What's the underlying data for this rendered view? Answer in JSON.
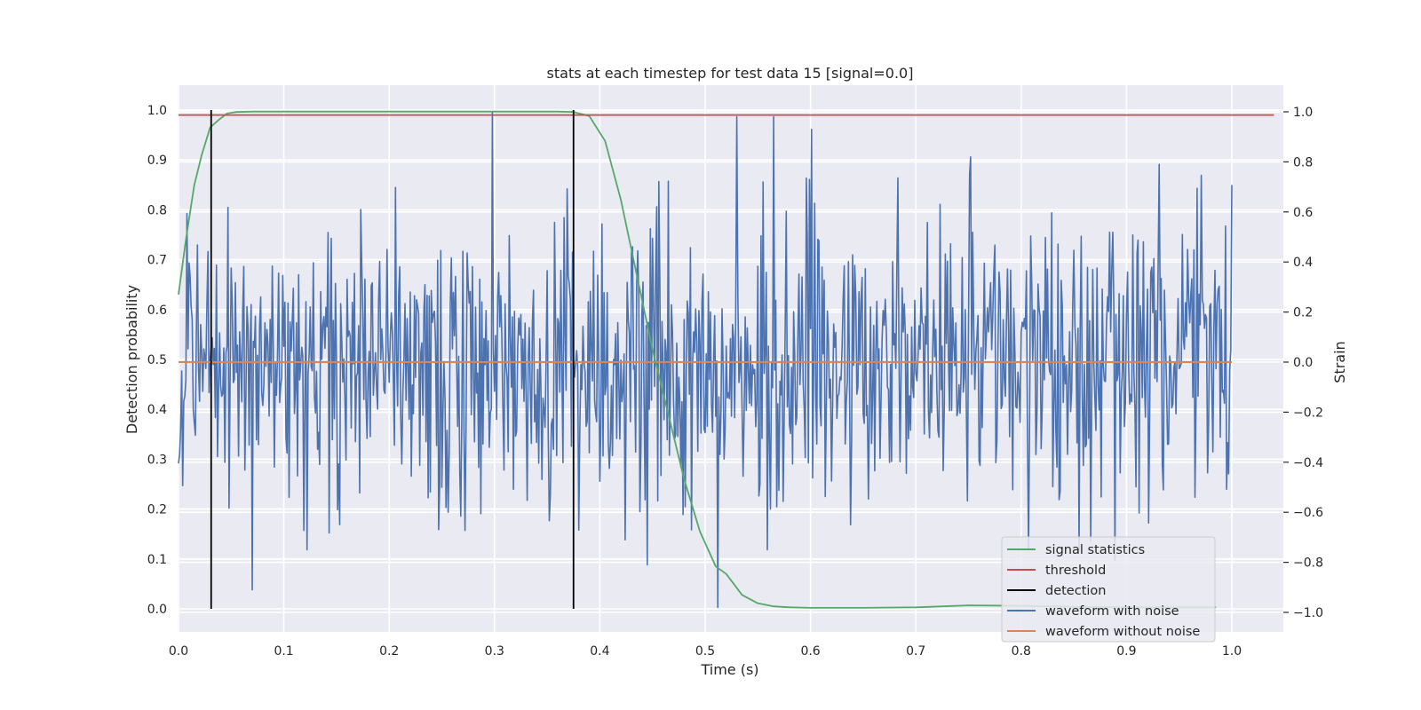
{
  "chart_data": {
    "type": "line",
    "title": "stats at each timestep for test data 15 [signal=0.0]",
    "xlabel": "Time (s)",
    "ylabel_left": "Detection probability",
    "ylabel_right": "Strain",
    "xlim": [
      0.0,
      1.05
    ],
    "ylim_left": [
      -0.048,
      1.048
    ],
    "ylim_right": [
      -1.1,
      1.1
    ],
    "xticks": [
      "0.0",
      "0.1",
      "0.2",
      "0.3",
      "0.4",
      "0.5",
      "0.6",
      "0.7",
      "0.8",
      "0.9",
      "1.0"
    ],
    "yticks_left": [
      "0.0",
      "0.1",
      "0.2",
      "0.3",
      "0.4",
      "0.5",
      "0.6",
      "0.7",
      "0.8",
      "0.9",
      "1.0"
    ],
    "yticks_right": [
      "−1.0",
      "−0.8",
      "−0.6",
      "−0.4",
      "−0.2",
      "0.0",
      "0.2",
      "0.4",
      "0.6",
      "0.8",
      "1.0"
    ],
    "grid": true,
    "legend_position": "lower right",
    "series": [
      {
        "name": "signal statistics",
        "axis": "left",
        "color": "#55a868",
        "x": [
          0.0,
          0.007,
          0.015,
          0.022,
          0.03,
          0.038,
          0.046,
          0.055,
          0.07,
          0.1,
          0.2,
          0.3,
          0.36,
          0.375,
          0.39,
          0.405,
          0.42,
          0.435,
          0.45,
          0.465,
          0.48,
          0.495,
          0.51,
          0.52,
          0.535,
          0.55,
          0.565,
          0.58,
          0.6,
          0.65,
          0.7,
          0.75,
          0.8,
          0.85,
          0.9,
          0.95,
          0.985
        ],
        "y": [
          0.63,
          0.74,
          0.85,
          0.91,
          0.965,
          0.98,
          0.993,
          0.996,
          0.997,
          0.997,
          0.997,
          0.997,
          0.997,
          0.996,
          0.988,
          0.938,
          0.82,
          0.67,
          0.52,
          0.39,
          0.26,
          0.155,
          0.085,
          0.07,
          0.028,
          0.011,
          0.005,
          0.003,
          0.002,
          0.002,
          0.003,
          0.007,
          0.006,
          0.004,
          0.003,
          0.003,
          0.003
        ]
      },
      {
        "name": "threshold",
        "axis": "left",
        "color": "#c44e52",
        "x": [
          0.0,
          1.04
        ],
        "y": [
          0.99,
          0.99
        ]
      },
      {
        "name": "detection",
        "axis": "left",
        "color": "#000000",
        "segments": [
          {
            "x": 0.031,
            "y0": 0.0,
            "y1": 1.0
          },
          {
            "x": 0.375,
            "y0": 0.0,
            "y1": 1.0
          }
        ]
      },
      {
        "name": "waveform with noise",
        "axis": "right",
        "color": "#4c72b0",
        "x_start": 0.0,
        "x_end": 1.0,
        "peaks": [
          {
            "x": 0.07,
            "y": -0.91
          },
          {
            "x": 0.298,
            "y": 1.0
          },
          {
            "x": 0.445,
            "y": -0.81
          },
          {
            "x": 0.512,
            "y": -0.98
          },
          {
            "x": 0.53,
            "y": 0.98
          },
          {
            "x": 0.565,
            "y": 0.98
          },
          {
            "x": 0.601,
            "y": 0.93
          },
          {
            "x": 0.752,
            "y": 0.82
          },
          {
            "x": 0.931,
            "y": 0.79
          },
          {
            "x": 0.889,
            "y": -0.79
          }
        ]
      },
      {
        "name": "waveform without noise",
        "axis": "right",
        "color": "#dd8452",
        "x": [
          0.0,
          1.0
        ],
        "y": [
          0.0,
          0.0
        ]
      }
    ]
  }
}
